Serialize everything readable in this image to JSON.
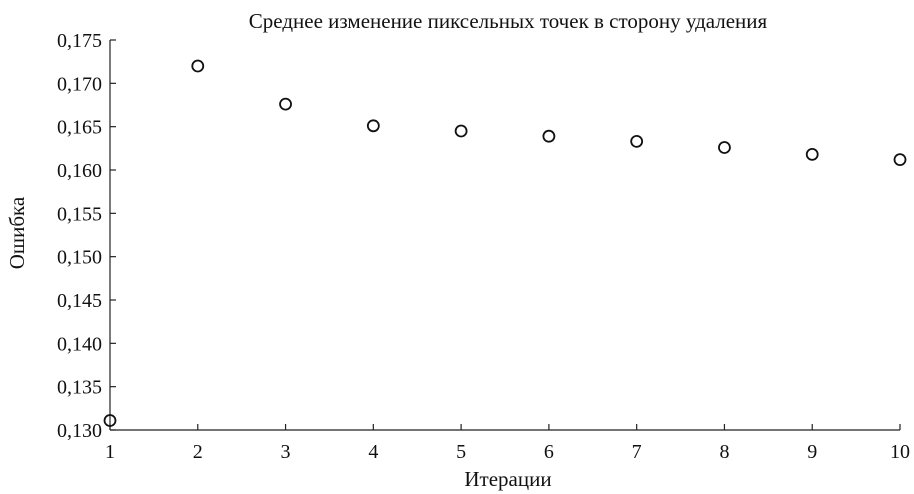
{
  "chart_data": {
    "type": "scatter",
    "title": "Среднее изменение пиксельных точек в сторону удаления",
    "xlabel": "Итерации",
    "ylabel": "Ошибка",
    "x": [
      1,
      2,
      3,
      4,
      5,
      6,
      7,
      8,
      9,
      10
    ],
    "series": [
      {
        "values": [
          0.1311,
          0.172,
          0.1676,
          0.1651,
          0.1645,
          0.1639,
          0.1633,
          0.1626,
          0.1618,
          0.1612
        ]
      }
    ],
    "xlim": [
      1,
      10
    ],
    "ylim": [
      0.13,
      0.175
    ],
    "x_ticks": [
      "1",
      "2",
      "3",
      "4",
      "5",
      "6",
      "7",
      "8",
      "9",
      "10"
    ],
    "y_ticks": [
      "0,130",
      "0,135",
      "0,140",
      "0,145",
      "0,150",
      "0,155",
      "0,160",
      "0,165",
      "0,170",
      "0,175"
    ],
    "grid": false,
    "marker": "hollow-circle",
    "colors": {
      "marker": "#111111",
      "axis": "#222222",
      "text": "#111111"
    }
  }
}
